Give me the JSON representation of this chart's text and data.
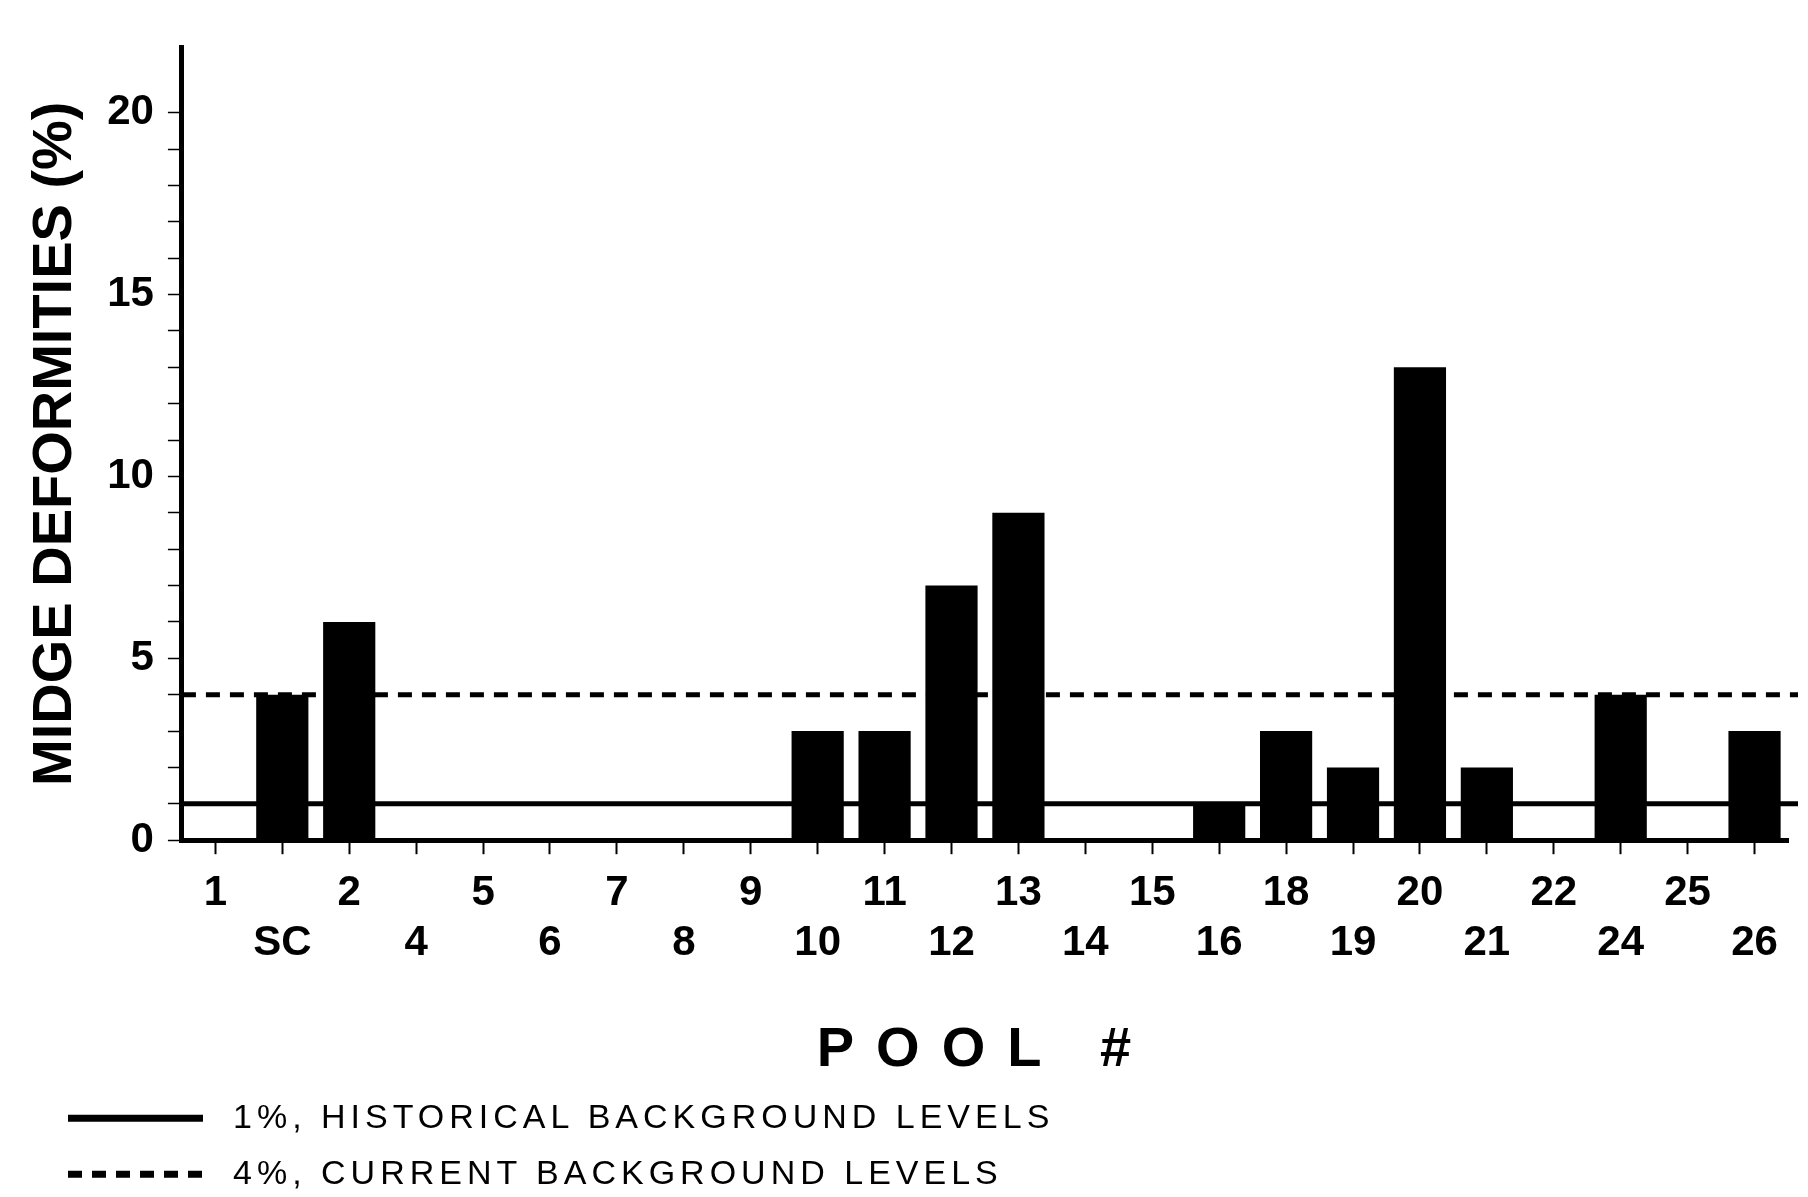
{
  "chart_data": {
    "type": "bar",
    "xlabel": "POOL #",
    "ylabel": "MIDGE DEFORMITIES (%)",
    "categories": [
      "1",
      "SC",
      "2",
      "4",
      "5",
      "6",
      "7",
      "8",
      "9",
      "10",
      "11",
      "12",
      "13",
      "14",
      "15",
      "16",
      "18",
      "19",
      "20",
      "21",
      "22",
      "24",
      "25",
      "26"
    ],
    "values": [
      0,
      4,
      6,
      0,
      0,
      0,
      0,
      0,
      0,
      3,
      3,
      7,
      9,
      0,
      0,
      1,
      3,
      2,
      13,
      2,
      0,
      4,
      0,
      3
    ],
    "color": "#000000",
    "ylim": [
      0,
      21.8
    ],
    "yticks": [
      0,
      {
        "value": 1,
        "label": null
      },
      {
        "value": 2,
        "label": null
      },
      {
        "value": 3,
        "label": null
      },
      {
        "value": 4,
        "label": null
      },
      5,
      {
        "value": 6,
        "label": null
      },
      {
        "value": 7,
        "label": null
      },
      {
        "value": 8,
        "label": null
      },
      {
        "value": 9,
        "label": null
      },
      10,
      {
        "value": 11,
        "label": null
      },
      {
        "value": 12,
        "label": null
      },
      {
        "value": 13,
        "label": null
      },
      {
        "value": 14,
        "label": null
      },
      15,
      {
        "value": 16,
        "label": null
      },
      {
        "value": 17,
        "label": null
      },
      {
        "value": 18,
        "label": null
      },
      {
        "value": 19,
        "label": null
      },
      20
    ],
    "grid": false,
    "legend": "bottom",
    "ref_lines": [
      {
        "axis": "y",
        "value": 1,
        "label": "1%, HISTORICAL BACKGROUND LEVELS",
        "color": "#000000",
        "line_style": "solid"
      },
      {
        "axis": "y",
        "value": 4,
        "label": "4%, CURRENT BACKGROUND LEVELS",
        "color": "#000000",
        "line_style": "dashed"
      }
    ]
  }
}
